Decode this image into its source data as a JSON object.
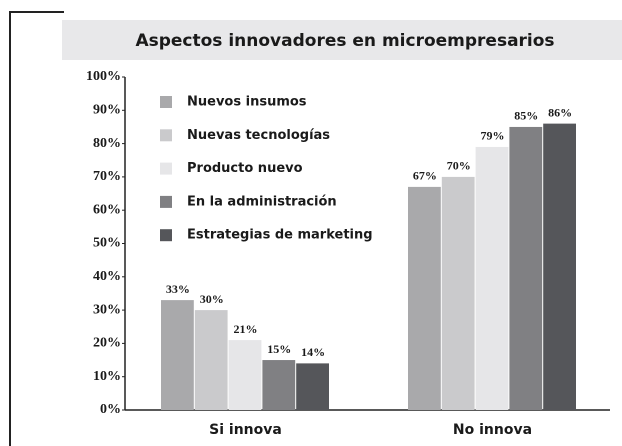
{
  "chart_data": {
    "type": "bar",
    "title": "Aspectos innovadores en microempresarios",
    "categories": [
      "Si innova",
      "No innova"
    ],
    "series": [
      {
        "name": "Nuevos insumos",
        "color": "#a9a9ab",
        "values": [
          33,
          67
        ],
        "value_labels": [
          "33%",
          "67%"
        ]
      },
      {
        "name": "Nuevas tecnologías",
        "color": "#cacacc",
        "values": [
          30,
          70
        ],
        "value_labels": [
          "30%",
          "70%"
        ]
      },
      {
        "name": "Producto nuevo",
        "color": "#e6e6e8",
        "values": [
          21,
          79
        ],
        "value_labels": [
          "21%",
          "79%"
        ]
      },
      {
        "name": "En la administración",
        "color": "#808083",
        "values": [
          15,
          85
        ],
        "value_labels": [
          "15%",
          "85%"
        ]
      },
      {
        "name": "Estrategias de marketing",
        "color": "#55565a",
        "values": [
          14,
          86
        ],
        "value_labels": [
          "14%",
          "86%"
        ]
      }
    ],
    "ylim": [
      0,
      100
    ],
    "yticks": [
      {
        "value": 0,
        "label": "0%"
      },
      {
        "value": 10,
        "label": "10%"
      },
      {
        "value": 20,
        "label": "20%"
      },
      {
        "value": 30,
        "label": "30%"
      },
      {
        "value": 40,
        "label": "40%"
      },
      {
        "value": 50,
        "label": "50%"
      },
      {
        "value": 60,
        "label": "60%"
      },
      {
        "value": 70,
        "label": "70%"
      },
      {
        "value": 80,
        "label": "80%"
      },
      {
        "value": 90,
        "label": "90%"
      },
      {
        "value": 100,
        "label": "100%"
      }
    ],
    "legend": "upper left"
  }
}
